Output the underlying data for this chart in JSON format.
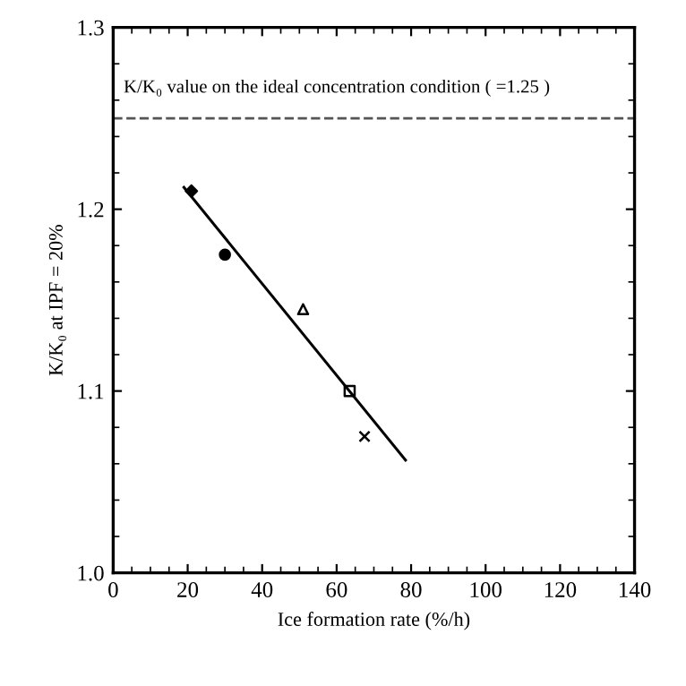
{
  "chart_data": {
    "type": "scatter",
    "xlabel": "Ice formation rate (%/h)",
    "ylabel": "K/K₀ at IPF = 20%",
    "series": [
      {
        "marker": "diamond",
        "color": "#000000",
        "x": [
          21
        ],
        "values": [
          1.21
        ]
      },
      {
        "marker": "circle",
        "color": "#000000",
        "x": [
          30
        ],
        "values": [
          1.175
        ]
      },
      {
        "marker": "triangle",
        "color": "#000000",
        "x": [
          51
        ],
        "values": [
          1.145
        ]
      },
      {
        "marker": "square",
        "color": "#000000",
        "x": [
          63.5
        ],
        "values": [
          1.1
        ]
      },
      {
        "marker": "cross",
        "color": "#000000",
        "x": [
          67.5
        ],
        "values": [
          1.075
        ]
      },
      {
        "type": "line",
        "marker": "none",
        "color": "#000000",
        "x": [
          19,
          78.5
        ],
        "values": [
          1.212,
          1.062
        ]
      }
    ],
    "ref_lines": [
      {
        "axis": "y",
        "value": 1.25,
        "label": "K/K₀ value on the ideal concentration condition ( =1.25 )",
        "color": "#555555",
        "line_style": "dashed"
      }
    ],
    "xlim": [
      0,
      140
    ],
    "ylim": [
      1.0,
      1.3
    ],
    "xticks": [
      0,
      20,
      40,
      60,
      80,
      100,
      120,
      140
    ],
    "yticks": [
      {
        "value": 1.0,
        "label": "1.0"
      },
      1.1,
      1.2,
      1.3
    ],
    "grid": false
  }
}
